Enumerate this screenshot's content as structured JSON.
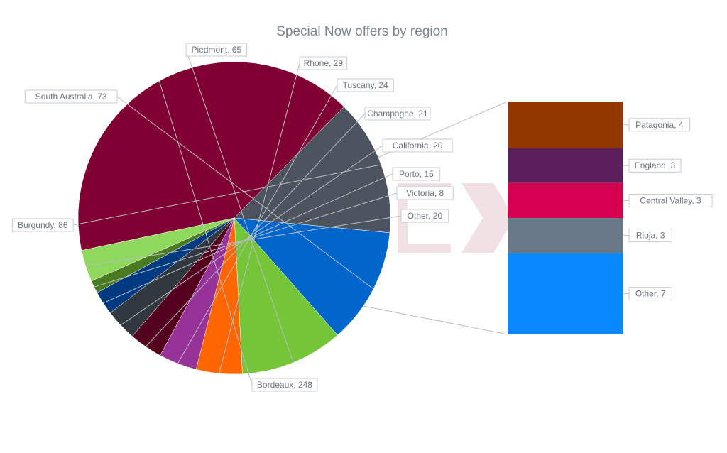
{
  "chart_data": {
    "type": "pie",
    "title": "Special Now offers by region",
    "series": [
      {
        "name": "",
        "slices": [
          {
            "label": "Bordeaux",
            "value": 248,
            "color": "#800033",
            "display": "Bordeaux, 248"
          },
          {
            "label": "Burgundy",
            "value": 86,
            "color": "#4c555f",
            "display": "Burgundy, 86"
          },
          {
            "label": "South Australia",
            "value": 73,
            "color": "#0066cc",
            "display": "South Australia, 73"
          },
          {
            "label": "Piedmont",
            "value": 65,
            "color": "#74c537",
            "display": "Piedmont, 65"
          },
          {
            "label": "Rhone",
            "value": 29,
            "color": "#ff6600",
            "display": "Rhone, 29"
          },
          {
            "label": "Tuscany",
            "value": 24,
            "color": "#973299",
            "display": "Tuscany, 24"
          },
          {
            "label": "Champagne",
            "value": 21,
            "color": "#55001f",
            "display": "Champagne, 21"
          },
          {
            "label": "California",
            "value": 20,
            "color": "#323840",
            "display": "California, 20"
          },
          {
            "label": "Porto",
            "value": 15,
            "color": "#003a80",
            "display": "Porto, 15"
          },
          {
            "label": "Victoria",
            "value": 8,
            "color": "#4a7a22",
            "display": "Victoria, 8"
          },
          {
            "label": "Other",
            "value": 20,
            "color": "#8fd85e",
            "display": "Other, 20"
          }
        ]
      },
      {
        "name": "",
        "stacked_bar": [
          {
            "label": "Patagonia",
            "value": 4,
            "color": "#923700",
            "display": "Patagonia, 4"
          },
          {
            "label": "England",
            "value": 3,
            "color": "#5a1f5c",
            "display": "England, 3"
          },
          {
            "label": "Central Valley",
            "value": 3,
            "color": "#d5004f",
            "display": "Central Valley, 3"
          },
          {
            "label": "Rioja",
            "value": 3,
            "color": "#687888",
            "display": "Rioja, 3"
          },
          {
            "label": "Other",
            "value": 7,
            "color": "#0a88ff",
            "display": "Other, 7"
          }
        ]
      }
    ],
    "breakdown_of": "Other",
    "legend": "none"
  }
}
